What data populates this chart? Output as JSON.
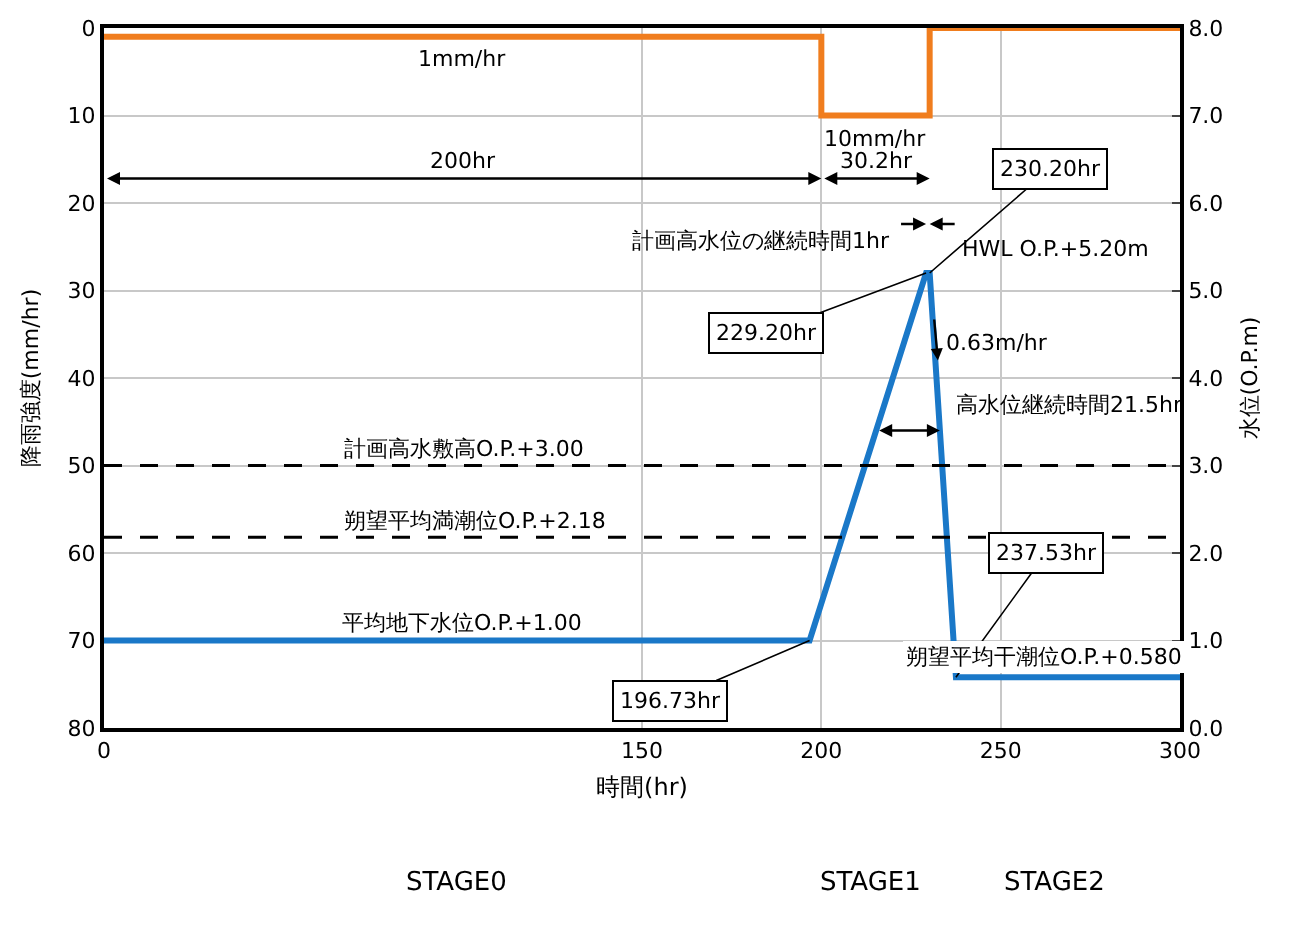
{
  "chart_data": {
    "type": "line",
    "xlabel": "時間(hr)",
    "ylabel": "降雨強度(mm/hr)",
    "y2label": "水位(O.P.m)",
    "xlim": [
      0,
      300
    ],
    "xticks": [
      0,
      150,
      200,
      250,
      300
    ],
    "ylim": [
      80,
      0
    ],
    "yticks": [
      0,
      10,
      20,
      30,
      40,
      50,
      60,
      70,
      80
    ],
    "y2lim": [
      0,
      8
    ],
    "y2ticks": [
      {
        "value": 0,
        "label": "0.0"
      },
      {
        "value": 1,
        "label": "1.0"
      },
      {
        "value": 2,
        "label": "2.0"
      },
      {
        "value": 3,
        "label": "3.0"
      },
      {
        "value": 4,
        "label": "4.0"
      },
      {
        "value": 5,
        "label": "5.0"
      },
      {
        "value": 6,
        "label": "6.0"
      },
      {
        "value": 7,
        "label": "7.0"
      },
      {
        "value": 8,
        "label": "8.0"
      }
    ],
    "series": [
      {
        "type": "step",
        "color": "#f07d1e",
        "x": [
          0,
          200,
          230.2,
          300
        ],
        "values": [
          1,
          10,
          0,
          0
        ]
      },
      {
        "type": "line",
        "axis": "y2",
        "color": "#1a78c8",
        "x": [
          0,
          196.73,
          229.2,
          230.2,
          237.53,
          300
        ],
        "values": [
          1.0,
          1.0,
          5.2,
          5.2,
          0.58,
          0.58
        ]
      }
    ],
    "ref_lines": [
      {
        "axis": "y2",
        "value": 3.0,
        "label": "計画高水敷高O.P.+3.00",
        "line_style": "dashed",
        "color": "#000000"
      },
      {
        "axis": "y2",
        "value": 2.18,
        "label": "朔望平均満潮位O.P.+2.18",
        "line_style": "dashed",
        "color": "#000000"
      }
    ],
    "annotations": [
      {
        "text": "1mm/hr",
        "x": 100,
        "y": 1
      },
      {
        "text": "10mm/hr",
        "x": 215.1,
        "y": 10
      },
      "200hr",
      "30.2hr",
      "計画高水位の継続時間1hr",
      {
        "text": "229.20hr",
        "x": 229.2,
        "y": 28
      },
      {
        "text": "230.20hr",
        "x": 230.2,
        "y": 28
      },
      {
        "text": "HWL O.P.+5.20m",
        "x": 230.2,
        "y": 28
      },
      {
        "text": "0.63m/hr",
        "x": 232.5,
        "y": 38
      },
      {
        "text": "高水位継続時間21.5hr",
        "x": 233.06,
        "y": 46
      },
      {
        "text": "平均地下水位O.P.+1.00",
        "x": 100,
        "y": 70
      },
      {
        "text": "196.73hr",
        "x": 196.73,
        "y": 70
      },
      {
        "text": "237.53hr",
        "x": 237.53,
        "y": 74.2
      },
      {
        "text": "朔望平均干潮位O.P.+0.580",
        "x": 262,
        "y": 74.2
      },
      "STAGE0",
      "STAGE1",
      "STAGE2"
    ],
    "grid": true,
    "marker": "none"
  }
}
